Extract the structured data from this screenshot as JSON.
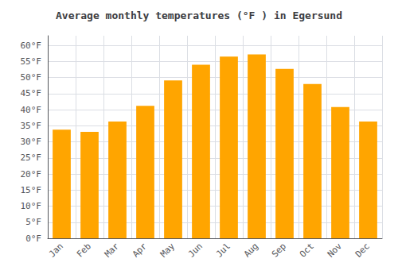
{
  "chart_data": {
    "type": "bar",
    "title": "Average monthly temperatures (°F ) in Egersund",
    "categories": [
      "Jan",
      "Feb",
      "Mar",
      "Apr",
      "May",
      "Jun",
      "Jul",
      "Aug",
      "Sep",
      "Oct",
      "Nov",
      "Dec"
    ],
    "values": [
      33.8,
      33.1,
      36.3,
      41.2,
      49.1,
      54.0,
      56.5,
      57.2,
      52.7,
      48.0,
      40.8,
      36.3
    ],
    "color": "#FFA500",
    "ylim": [
      0,
      63
    ],
    "yticks": [
      {
        "value": 0,
        "label": "0°F"
      },
      {
        "value": 5,
        "label": "5°F"
      },
      {
        "value": 10,
        "label": "10°F"
      },
      {
        "value": 15,
        "label": "15°F"
      },
      {
        "value": 20,
        "label": "20°F"
      },
      {
        "value": 25,
        "label": "25°F"
      },
      {
        "value": 30,
        "label": "30°F"
      },
      {
        "value": 35,
        "label": "35°F"
      },
      {
        "value": 40,
        "label": "40°F"
      },
      {
        "value": 45,
        "label": "45°F"
      },
      {
        "value": 50,
        "label": "50°F"
      },
      {
        "value": 55,
        "label": "55°F"
      },
      {
        "value": 60,
        "label": "60°F"
      }
    ],
    "grid": true
  }
}
